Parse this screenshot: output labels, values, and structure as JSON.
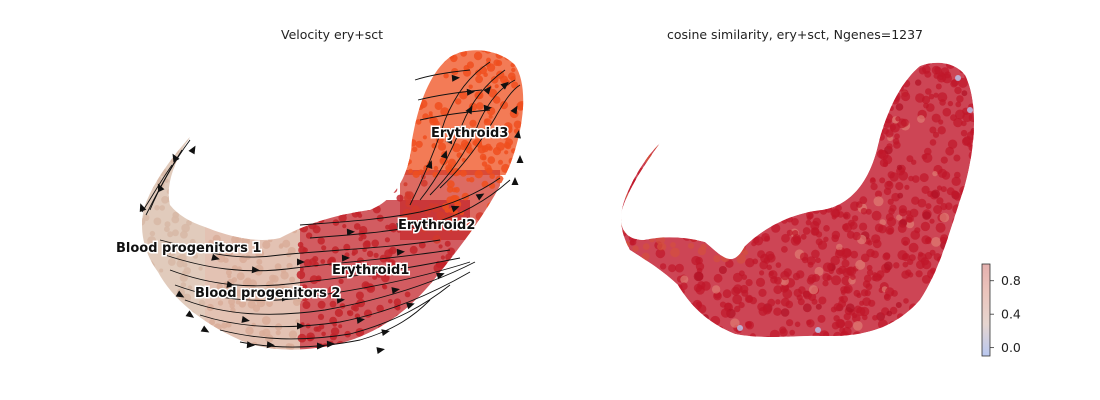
{
  "chart_data": [
    {
      "type": "scatter",
      "title": "Velocity ery+sct",
      "overlay": "streamlines",
      "axes": "off",
      "groups": [
        {
          "name": "Blood progenitors 1",
          "color": "#d7b9a6"
        },
        {
          "name": "Blood progenitors 2",
          "color": "#d9ad99"
        },
        {
          "name": "Erythroid1",
          "color": "#c3252c"
        },
        {
          "name": "Erythroid2",
          "color": "#d23a2d"
        },
        {
          "name": "Erythroid3",
          "color": "#ef4f1e"
        }
      ]
    },
    {
      "type": "scatter",
      "title": "cosine similarity, ery+sct, Ngenes=1237",
      "axes": "off",
      "colormap": "coolwarm",
      "point_color": "#c0172a",
      "colorbar": {
        "range": [
          -0.1,
          1.0
        ],
        "ticks": [
          "0.0",
          "0.4",
          "0.8"
        ],
        "tick_values": [
          0.0,
          0.4,
          0.8
        ],
        "colors": [
          "#b9c8f0",
          "#e6d5cf",
          "#ebc4bc",
          "#e4b0ae"
        ]
      }
    }
  ]
}
